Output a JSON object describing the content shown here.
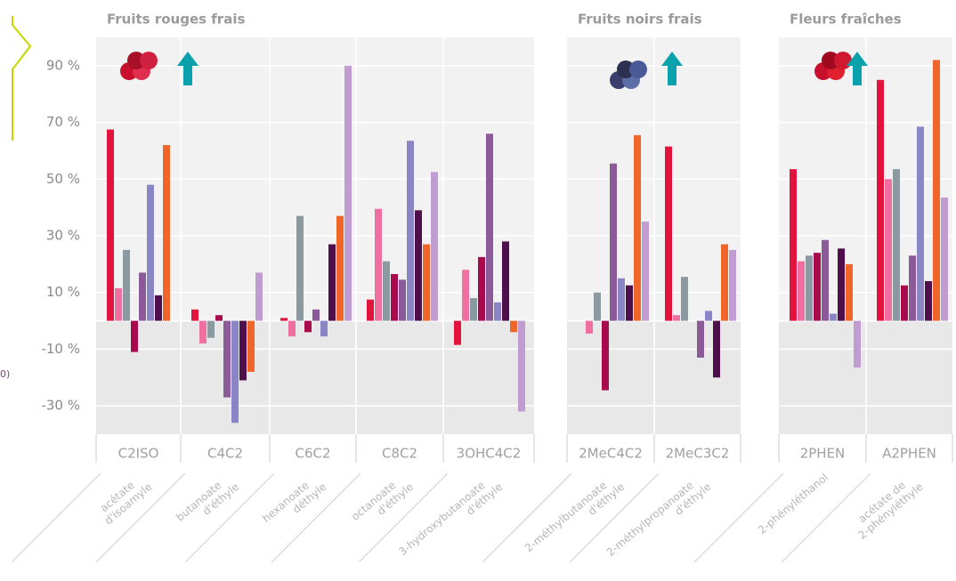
{
  "chart_data": [
    {
      "type": "bar",
      "title": "Fruits rouges frais",
      "categories": [
        "C2ISO",
        "C4C2",
        "C6C2",
        "C8C2",
        "3OHC4C2"
      ],
      "descriptions": [
        [
          "acétate",
          "d'isoamyle"
        ],
        [
          "butanoate",
          "d'éthyle"
        ],
        [
          "hexanoate",
          "déthyle"
        ],
        [
          "octanoate",
          "d'éthyle"
        ],
        [
          "3-hydroxybutanoate",
          "d'éthyle"
        ]
      ],
      "ylim": [
        -40,
        100
      ],
      "yticks": [
        {
          "value": 90,
          "label": "90 %"
        },
        {
          "value": 70,
          "label": "70 %"
        },
        {
          "value": 50,
          "label": "50 %"
        },
        {
          "value": 30,
          "label": "30 %"
        },
        {
          "value": 10,
          "label": "10 %"
        },
        {
          "value": -10,
          "label": "-10 %"
        },
        {
          "value": -30,
          "label": "-30 %"
        }
      ],
      "series": [
        {
          "color": "#e2133c",
          "values": [
            67.5,
            4,
            1,
            7.5,
            -8.5
          ]
        },
        {
          "color": "#ee6fa0",
          "values": [
            11.5,
            -8,
            -5.5,
            39.5,
            18
          ]
        },
        {
          "color": "#8a9aa0",
          "values": [
            25,
            -6,
            37,
            21,
            8
          ]
        },
        {
          "color": "#a80a4e",
          "values": [
            -11,
            2,
            -4,
            16.5,
            22.5
          ]
        },
        {
          "color": "#8b5a98",
          "values": [
            17,
            -27,
            4,
            14.5,
            66
          ]
        },
        {
          "color": "#8a85c5",
          "values": [
            48,
            -36,
            -5.5,
            63.5,
            6.5
          ]
        },
        {
          "color": "#4f0f4a",
          "values": [
            9,
            -21,
            27,
            39,
            28
          ]
        },
        {
          "color": "#f0652a",
          "values": [
            62,
            -18,
            37,
            27,
            -4
          ]
        },
        {
          "color": "#c19cd0",
          "values": [
            null,
            17,
            90,
            52.5,
            -32
          ]
        }
      ]
    },
    {
      "type": "bar",
      "title": "Fruits noirs frais",
      "categories": [
        "2MeC4C2",
        "2MeC3C2"
      ],
      "descriptions": [
        [
          "2-méthylbutanoate",
          "d'éthyle"
        ],
        [
          "2-méthylpropanoate",
          "d'éthyle"
        ]
      ],
      "ylim": [
        -40,
        100
      ],
      "series": [
        {
          "color": "#e2133c",
          "values": [
            null,
            61.5
          ]
        },
        {
          "color": "#ee6fa0",
          "values": [
            -4.5,
            2
          ]
        },
        {
          "color": "#8a9aa0",
          "values": [
            10,
            15.5
          ]
        },
        {
          "color": "#a80a4e",
          "values": [
            -24.5,
            null
          ]
        },
        {
          "color": "#8b5a98",
          "values": [
            55.5,
            -13
          ]
        },
        {
          "color": "#8a85c5",
          "values": [
            15,
            3.5
          ]
        },
        {
          "color": "#4f0f4a",
          "values": [
            12.5,
            -20
          ]
        },
        {
          "color": "#f0652a",
          "values": [
            65.5,
            27
          ]
        },
        {
          "color": "#c19cd0",
          "values": [
            35,
            25
          ]
        }
      ]
    },
    {
      "type": "bar",
      "title": "Fleurs fraîches",
      "categories": [
        "2PHEN",
        "A2PHEN"
      ],
      "descriptions": [
        [
          "2-phényléthanol"
        ],
        [
          "acétate de",
          "2-phényléthyle"
        ]
      ],
      "ylim": [
        -40,
        100
      ],
      "series": [
        {
          "color": "#e2133c",
          "values": [
            53.5,
            85
          ]
        },
        {
          "color": "#ee6fa0",
          "values": [
            21,
            50
          ]
        },
        {
          "color": "#8a9aa0",
          "values": [
            23,
            53.5
          ]
        },
        {
          "color": "#a80a4e",
          "values": [
            24,
            12.5
          ]
        },
        {
          "color": "#8b5a98",
          "values": [
            28.5,
            23
          ]
        },
        {
          "color": "#8a85c5",
          "values": [
            2.5,
            68.5
          ]
        },
        {
          "color": "#4f0f4a",
          "values": [
            25.5,
            14
          ]
        },
        {
          "color": "#f0652a",
          "values": [
            20,
            92
          ]
        },
        {
          "color": "#c19cd0",
          "values": [
            -16.5,
            43.5
          ]
        }
      ]
    }
  ],
  "left_fragment": "0)"
}
